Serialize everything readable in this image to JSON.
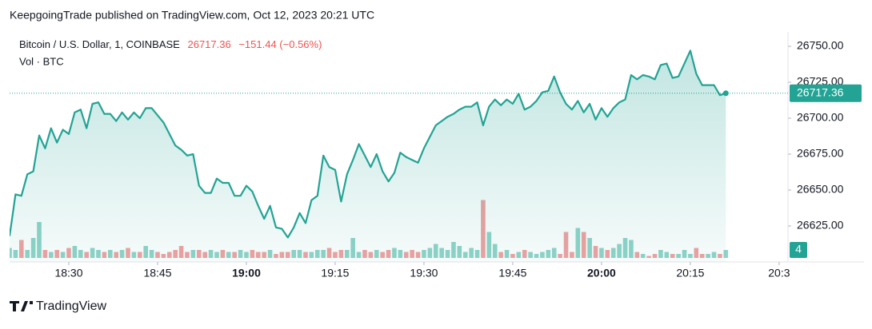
{
  "header": "KeepgoingTrade published on TradingView.com, Oct 12, 2023 20:21 UTC",
  "chart_data": {
    "type": "line",
    "change": "−151.44 (−0.56%)",
    "x": [
      1100,
      1101,
      1102,
      1103,
      1104,
      1105,
      1106,
      1107,
      1108,
      1109,
      1110,
      1111,
      1112,
      1113,
      1114,
      1115,
      1116,
      1117,
      1118,
      1119,
      1120,
      1121,
      1122,
      1123,
      1124,
      1125,
      1126,
      1127,
      1128,
      1129,
      1130,
      1131,
      1132,
      1133,
      1134,
      1135,
      1136,
      1137,
      1138,
      1139,
      1140,
      1141,
      1142,
      1143,
      1144,
      1145,
      1146,
      1147,
      1148,
      1149,
      1150,
      1151,
      1152,
      1153,
      1154,
      1155,
      1156,
      1157,
      1158,
      1159,
      1160,
      1161,
      1162,
      1163,
      1164,
      1165,
      1166,
      1167,
      1168,
      1169,
      1170,
      1171,
      1172,
      1173,
      1174,
      1175,
      1176,
      1177,
      1178,
      1179,
      1180,
      1181,
      1182,
      1183,
      1184,
      1185,
      1186,
      1187,
      1188,
      1189,
      1190,
      1191,
      1192,
      1193,
      1194,
      1195,
      1196,
      1197,
      1198,
      1199,
      1200,
      1201,
      1202,
      1203,
      1204,
      1205,
      1206,
      1207,
      1208,
      1209,
      1210,
      1211,
      1212,
      1213,
      1214,
      1215,
      1216,
      1217,
      1218,
      1219,
      1220,
      1221
    ],
    "series": [
      {
        "name": "Bitcoin / U.S. Dollar, 1, COINBASE",
        "color": "#22a394",
        "values": [
          26618,
          26647,
          26646,
          26661,
          26663,
          26688,
          26679,
          26693,
          26683,
          26692,
          26689,
          26704,
          26706,
          26693,
          26710,
          26711,
          26703,
          26703,
          26698,
          26704,
          26699,
          26704,
          26700,
          26707,
          26707,
          26702,
          26697,
          26689,
          26681,
          26678,
          26674,
          26675,
          26653,
          26648,
          26648,
          26658,
          26655,
          26655,
          26646,
          26646,
          26653,
          26649,
          26639,
          26630,
          26639,
          26624,
          26623,
          26617,
          26624,
          26634,
          26627,
          26643,
          26646,
          26674,
          26666,
          26664,
          26642,
          26661,
          26671,
          26682,
          26674,
          26666,
          26675,
          26663,
          26656,
          26662,
          26676,
          26673,
          26671,
          26669,
          26679,
          26687,
          26695,
          26698,
          26701,
          26703,
          26706,
          26708,
          26708,
          26711,
          26695,
          26708,
          26713,
          26709,
          26713,
          26710,
          26717,
          26706,
          26708,
          26712,
          26718,
          26719,
          26729,
          26718,
          26710,
          26706,
          26712,
          26704,
          26710,
          26699,
          26707,
          26701,
          26707,
          26711,
          26713,
          26730,
          26727,
          26730,
          26729,
          26727,
          26737,
          26738,
          26728,
          26729,
          26738,
          26747,
          26731,
          26723,
          26723,
          26723,
          26716,
          26717.36
        ]
      },
      {
        "name": "Vol · BTC",
        "type": "bar",
        "axis": "y2",
        "up_color": "#8fd3c8",
        "down_color": "#f0a1a1",
        "values": [
          5,
          4,
          9,
          4,
          10,
          18,
          4,
          3,
          4,
          3,
          5,
          6,
          4,
          3,
          5,
          4,
          3,
          4,
          3,
          4,
          5,
          3,
          3,
          6,
          4,
          3,
          2,
          3,
          4,
          6,
          3,
          4,
          4,
          3,
          4,
          3,
          4,
          3,
          3,
          4,
          3,
          4,
          3,
          3,
          4,
          2,
          3,
          3,
          4,
          4,
          3,
          3,
          4,
          4,
          5,
          3,
          4,
          4,
          10,
          3,
          4,
          3,
          4,
          3,
          4,
          5,
          4,
          3,
          4,
          3,
          4,
          5,
          7,
          5,
          4,
          8,
          6,
          3,
          5,
          4,
          29,
          13,
          7,
          3,
          4,
          2,
          3,
          4,
          3,
          2,
          3,
          4,
          5,
          2,
          13,
          3,
          15,
          13,
          10,
          6,
          5,
          4,
          5,
          7,
          10,
          9,
          3,
          2,
          1,
          2,
          4,
          3,
          2,
          2,
          4,
          2,
          5,
          2,
          2,
          3,
          2,
          4
        ]
      }
    ],
    "xlim": [
      1100,
      1231.5
    ],
    "xticks": [
      {
        "value": 1110,
        "label": "18:30"
      },
      {
        "value": 1125,
        "label": "18:45"
      },
      {
        "value": 1140,
        "label": "19:00"
      },
      {
        "value": 1155,
        "label": "19:15"
      },
      {
        "value": 1170,
        "label": "19:30"
      },
      {
        "value": 1185,
        "label": "19:45"
      },
      {
        "value": 1200,
        "label": "20:00"
      },
      {
        "value": 1215,
        "label": "20:15"
      },
      {
        "value": 1230,
        "label": "20:3"
      }
    ],
    "ylim": [
      26600,
      26760
    ],
    "yticks": [
      {
        "value": 26625,
        "label": "26625.00"
      },
      {
        "value": 26650,
        "label": "26650.00"
      },
      {
        "value": 26675,
        "label": "26675.00"
      },
      {
        "value": 26700,
        "label": "26700.00"
      },
      {
        "value": 26725,
        "label": "26725.00"
      },
      {
        "value": 26750,
        "label": "26750.00"
      }
    ],
    "y2lim": [
      0,
      40
    ],
    "grid": false
  },
  "footer": {
    "brand": "TradingView"
  }
}
